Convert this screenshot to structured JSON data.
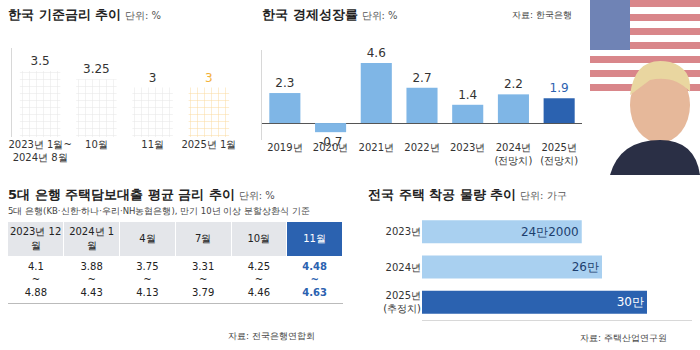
{
  "chart_data": [
    {
      "type": "bar",
      "title": "한국 기준금리 추이",
      "unit": "단위: %",
      "categories": [
        "2023년 1월~\n2024년 8월",
        "10월",
        "11월",
        "2025년 1월"
      ],
      "values": [
        3.5,
        3.25,
        3,
        3
      ],
      "colors": [
        "#c9c9c9",
        "#c9c9c9",
        "#c9c9c9",
        "#f3b13a"
      ],
      "ylim": [
        1.5,
        4.2
      ],
      "yticks": [],
      "data_labels": true,
      "tick_labels": "x",
      "grid": false
    },
    {
      "type": "bar",
      "title": "한국 경제성장률",
      "unit": "단위: %",
      "source": "자료: 한국은행",
      "categories": [
        "2019년",
        "2020년",
        "2021년",
        "2022년",
        "2023년",
        "2024년\n(전망치)",
        "2025년\n(전망치)"
      ],
      "values": [
        2.3,
        -0.7,
        4.6,
        2.7,
        1.4,
        2.2,
        1.9
      ],
      "colors": [
        "#7fb6e6",
        "#7fb6e6",
        "#7fb6e6",
        "#7fb6e6",
        "#7fb6e6",
        "#7fb6e6",
        "#2b62b0"
      ],
      "ylim": [
        -1.3,
        5.6
      ],
      "yticks": [],
      "data_labels": true,
      "tick_labels": "x",
      "grid": false
    },
    {
      "type": "bar",
      "orientation": "horizontal",
      "title": "전국 주택 착공 물량 추이",
      "unit": "단위: 가구",
      "source": "자료: 주택산업연구원",
      "categories": [
        "2023년",
        "2024년",
        "2025년\n(추정치)"
      ],
      "values": [
        242000,
        260000,
        300000
      ],
      "value_labels": [
        "24만2000",
        "26만",
        "30만"
      ],
      "colors": [
        "#a9d0f0",
        "#a9d0f0",
        "#2b62b0"
      ],
      "xlim": [
        100000,
        340000
      ],
      "xticks": [],
      "data_labels": true,
      "tick_labels": "y",
      "grid": false
    }
  ],
  "rate_table": {
    "title": "5대 은행 주택담보대출 평균 금리 추이",
    "unit": "단위: %",
    "subtitle": "5대 은행(KB·신한·하나·우리·NH농협은행), 만기 10년 이상 분할상환식 기준",
    "separator": "~",
    "columns": [
      {
        "period": "2023년 12월",
        "low": 4.1,
        "high": 4.88
      },
      {
        "period": "2024년 1월",
        "low": 3.88,
        "high": 4.43
      },
      {
        "period": "4월",
        "low": 3.75,
        "high": 4.13
      },
      {
        "period": "7월",
        "low": 3.31,
        "high": 3.79
      },
      {
        "period": "10월",
        "low": 4.25,
        "high": 4.46
      },
      {
        "period": "11월",
        "low": 4.48,
        "high": 4.63
      }
    ],
    "source": "자료: 전국은행연합회"
  }
}
